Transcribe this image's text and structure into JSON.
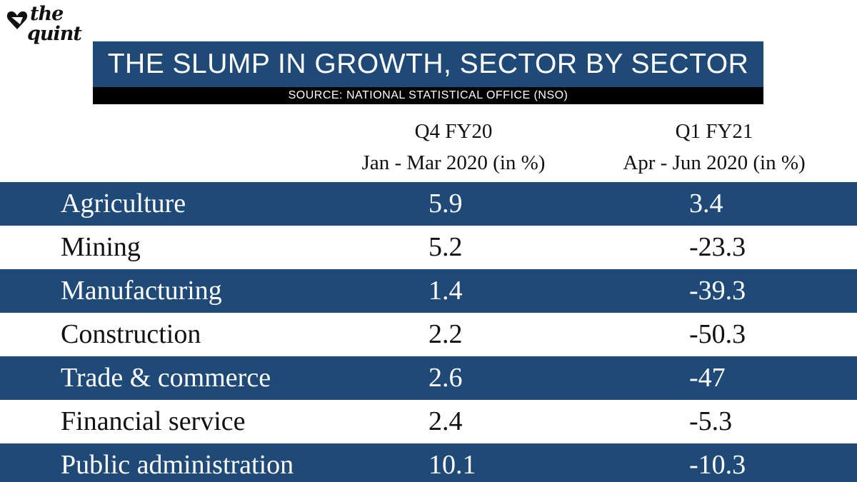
{
  "brand": {
    "line1": "the",
    "line2": "quint"
  },
  "title": "THE SLUMP IN GROWTH, SECTOR BY SECTOR",
  "source": "SOURCE: NATIONAL STATISTICAL OFFICE (NSO)",
  "colors": {
    "navy": "#1f4a78",
    "black": "#000000",
    "white": "#ffffff"
  },
  "columns": {
    "q4": {
      "period": "Q4 FY20",
      "range": "Jan - Mar 2020 (in %)"
    },
    "q1": {
      "period": "Q1 FY21",
      "range": "Apr - Jun 2020 (in %)"
    }
  },
  "rows": [
    {
      "sector": "Agriculture",
      "q4": "5.9",
      "q1": "3.4"
    },
    {
      "sector": "Mining",
      "q4": "5.2",
      "q1": "-23.3"
    },
    {
      "sector": "Manufacturing",
      "q4": "1.4",
      "q1": "-39.3"
    },
    {
      "sector": "Construction",
      "q4": "2.2",
      "q1": "-50.3"
    },
    {
      "sector": "Trade & commerce",
      "q4": "2.6",
      "q1": "-47"
    },
    {
      "sector": "Financial service",
      "q4": "2.4",
      "q1": "-5.3"
    },
    {
      "sector": "Public administration",
      "q4": "10.1",
      "q1": "-10.3"
    }
  ],
  "chart_data": {
    "type": "table",
    "title": "THE SLUMP IN GROWTH, SECTOR BY SECTOR",
    "subtitle": "SOURCE: NATIONAL STATISTICAL OFFICE (NSO)",
    "categories": [
      "Agriculture",
      "Mining",
      "Manufacturing",
      "Construction",
      "Trade & commerce",
      "Financial service",
      "Public administration"
    ],
    "series": [
      {
        "name": "Q4 FY20 Jan - Mar 2020 (in %)",
        "values": [
          5.9,
          5.2,
          1.4,
          2.2,
          2.6,
          2.4,
          10.1
        ]
      },
      {
        "name": "Q1 FY21 Apr - Jun 2020 (in %)",
        "values": [
          3.4,
          -23.3,
          -39.3,
          -50.3,
          -47,
          -5.3,
          -10.3
        ]
      }
    ]
  }
}
